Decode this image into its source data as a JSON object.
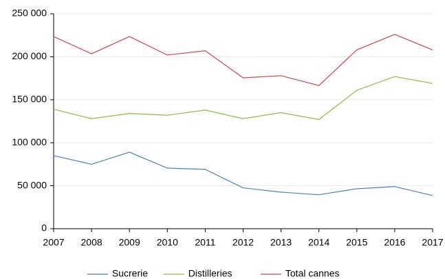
{
  "chart_data": {
    "type": "line",
    "x": [
      2007,
      2008,
      2009,
      2010,
      2011,
      2012,
      2013,
      2014,
      2015,
      2016,
      2017
    ],
    "xlim": [
      2007,
      2017
    ],
    "xticks": [
      2007,
      2008,
      2009,
      2010,
      2011,
      2012,
      2013,
      2014,
      2015,
      2016,
      2017
    ],
    "ylim": [
      0,
      250000
    ],
    "yticks": [
      0,
      {
        "value": 50000,
        "label": "50 000"
      },
      {
        "value": 100000,
        "label": "100 000"
      },
      {
        "value": 150000,
        "label": "150 000"
      },
      {
        "value": 200000,
        "label": "200 000"
      },
      {
        "value": 250000,
        "label": "250 000"
      }
    ],
    "grid": true,
    "legend": "bottom",
    "series": [
      {
        "name": "Sucrerie",
        "color": "#4a7ebb",
        "values": [
          85000,
          75000,
          89000,
          70500,
          69000,
          47500,
          42500,
          39500,
          46500,
          49000,
          38500
        ]
      },
      {
        "name": "Distilleries",
        "color": "#8cbd3f",
        "values": [
          139000,
          128000,
          134000,
          132000,
          138000,
          128000,
          135000,
          127000,
          161000,
          177000,
          169000
        ]
      },
      {
        "name": "Total cannes",
        "color": "#d7424c",
        "values": [
          223500,
          203500,
          223500,
          202000,
          207000,
          175500,
          178000,
          166500,
          208000,
          226000,
          208000
        ]
      }
    ]
  }
}
